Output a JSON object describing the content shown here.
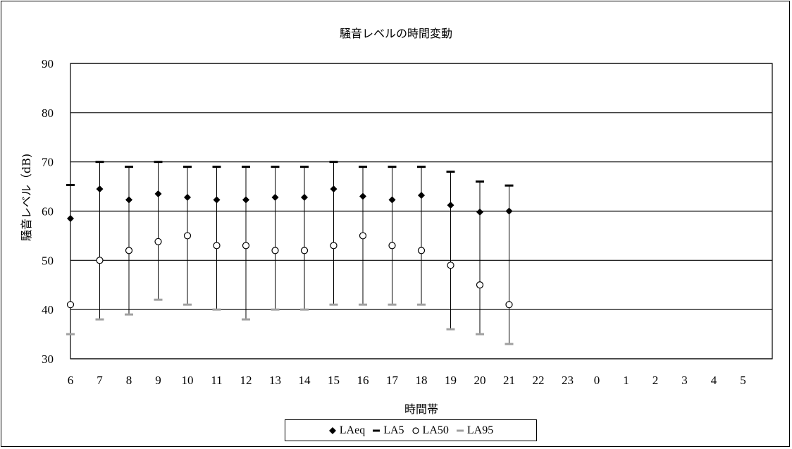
{
  "chart_data": {
    "type": "scatter",
    "title": "騒音レベルの時間変動",
    "xlabel": "時間帯",
    "ylabel": "騒音レベル（dB)",
    "ylim": [
      30,
      90
    ],
    "yticks": [
      "30",
      "40",
      "50",
      "60",
      "70",
      "80",
      "90"
    ],
    "categories": [
      "6",
      "7",
      "8",
      "9",
      "10",
      "11",
      "12",
      "13",
      "14",
      "15",
      "16",
      "17",
      "18",
      "19",
      "20",
      "21",
      "22",
      "23",
      "0",
      "1",
      "2",
      "3",
      "4",
      "5"
    ],
    "grid": "horizontal",
    "legend_position": "bottom",
    "series": [
      {
        "name": "LAeq",
        "marker": "filled-diamond",
        "color": "#000000",
        "values": [
          58.5,
          64.5,
          62.3,
          63.5,
          62.8,
          62.3,
          62.3,
          62.8,
          62.8,
          64.5,
          63.0,
          62.3,
          63.2,
          61.2,
          59.8,
          60.0,
          null,
          null,
          null,
          null,
          null,
          null,
          null,
          null
        ]
      },
      {
        "name": "LA5",
        "marker": "dash",
        "color": "#000000",
        "values": [
          65.3,
          70.0,
          69.0,
          70.0,
          69.0,
          69.0,
          69.0,
          69.0,
          69.0,
          70.0,
          69.0,
          69.0,
          69.0,
          68.0,
          66.0,
          65.2,
          null,
          null,
          null,
          null,
          null,
          null,
          null,
          null
        ]
      },
      {
        "name": "LA50",
        "marker": "open-circle",
        "color": "#000000",
        "values": [
          41.0,
          50.0,
          52.0,
          53.8,
          55.0,
          53.0,
          53.0,
          52.0,
          52.0,
          53.0,
          55.0,
          53.0,
          52.0,
          49.0,
          45.0,
          41.0,
          null,
          null,
          null,
          null,
          null,
          null,
          null,
          null
        ]
      },
      {
        "name": "LA95",
        "marker": "dash",
        "color": "#a0a0a0",
        "values": [
          35.0,
          38.0,
          39.0,
          42.0,
          41.0,
          40.0,
          38.0,
          40.0,
          40.0,
          41.0,
          41.0,
          41.0,
          41.0,
          36.0,
          35.0,
          33.0,
          null,
          null,
          null,
          null,
          null,
          null,
          null,
          null
        ]
      }
    ]
  }
}
